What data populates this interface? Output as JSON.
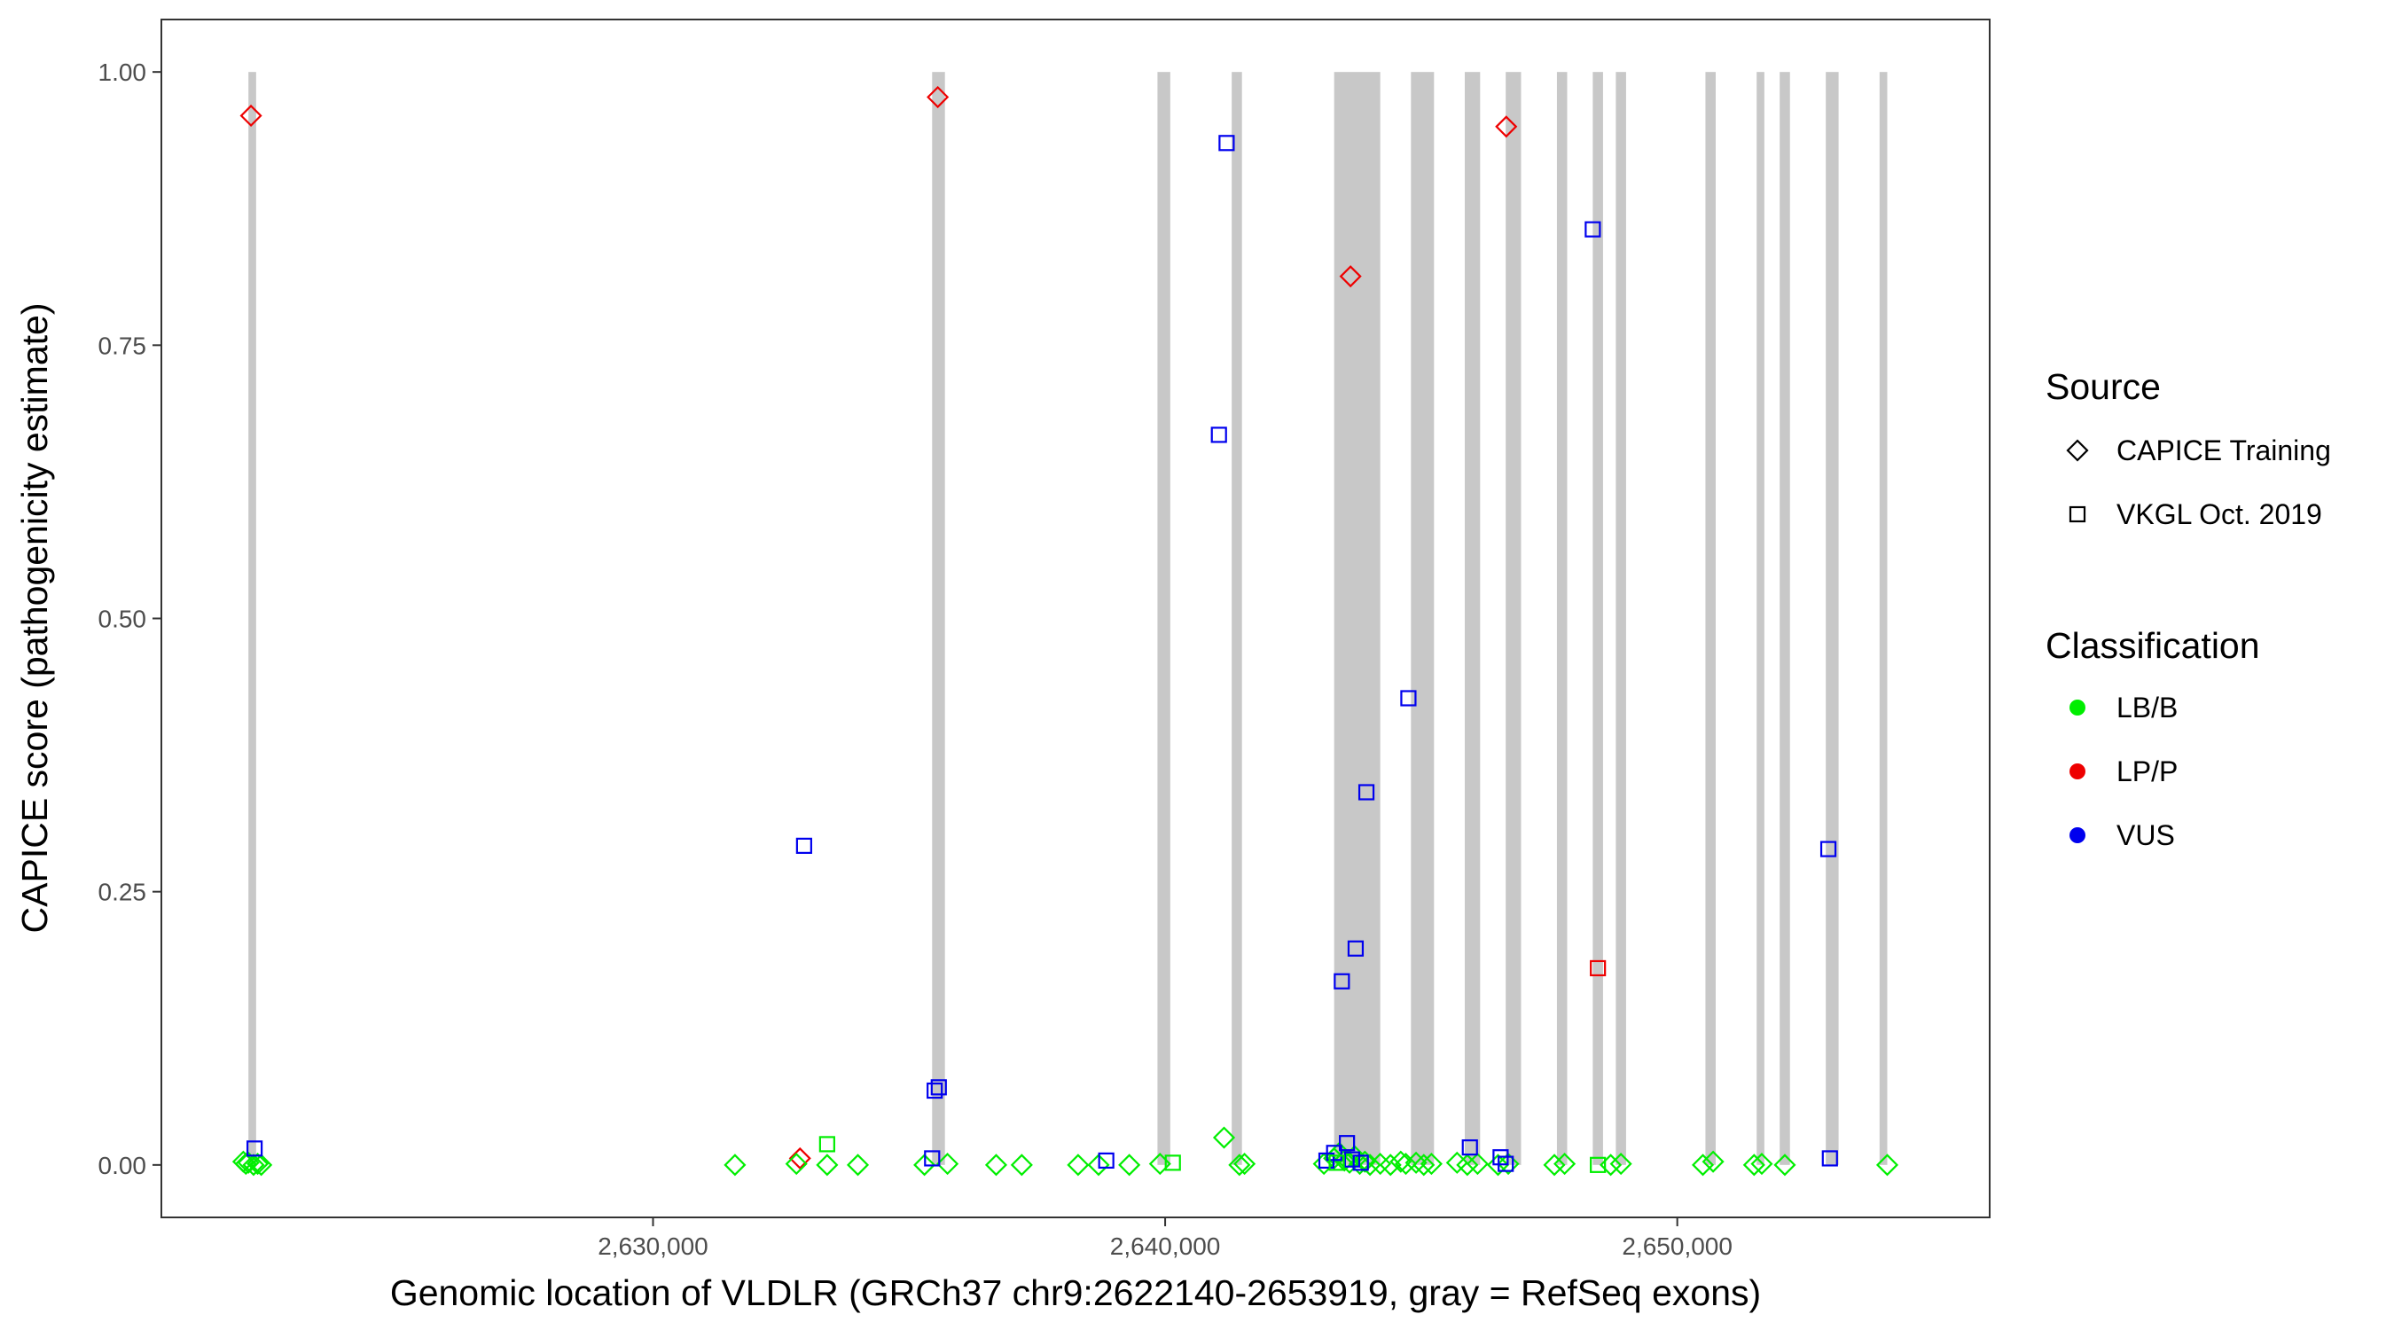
{
  "chart_data": {
    "type": "scatter",
    "title": "",
    "xlabel": "Genomic location of VLDLR (GRCh37 chr9:2622140-2653919, gray = RefSeq exons)",
    "ylabel": "CAPICE score (pathogenicity estimate)",
    "xlim": [
      2620400,
      2656100
    ],
    "ylim": [
      -0.048,
      1.048
    ],
    "x_ticks": [
      2630000,
      2640000,
      2650000
    ],
    "x_tick_labels": [
      "2,630,000",
      "2,640,000",
      "2,650,000"
    ],
    "y_ticks": [
      0,
      0.25,
      0.5,
      0.75,
      1
    ],
    "y_tick_labels": [
      "0.00",
      "0.25",
      "0.50",
      "0.75",
      "1.00"
    ],
    "grid": false,
    "exons": [
      [
        2622100,
        2622250
      ],
      [
        2635450,
        2635700
      ],
      [
        2639850,
        2640100
      ],
      [
        2641300,
        2641500
      ],
      [
        2643300,
        2644200
      ],
      [
        2644800,
        2645250
      ],
      [
        2645850,
        2646150
      ],
      [
        2646650,
        2646950
      ],
      [
        2647650,
        2647850
      ],
      [
        2648350,
        2648550
      ],
      [
        2648800,
        2649000
      ],
      [
        2650550,
        2650750
      ],
      [
        2651550,
        2651700
      ],
      [
        2652000,
        2652200
      ],
      [
        2652900,
        2653150
      ],
      [
        2653950,
        2654100
      ]
    ],
    "colors": {
      "LB/B": "#00ee00",
      "LP/P": "#ee0000",
      "VUS": "#0000ee",
      "exon": "#c8c8c8"
    },
    "legend": {
      "position": "right",
      "source_title": "Source",
      "source_items": [
        {
          "label": "CAPICE Training",
          "shape": "diamond"
        },
        {
          "label": "VKGL Oct. 2019",
          "shape": "square"
        }
      ],
      "class_title": "Classification",
      "class_items": [
        {
          "label": "LB/B",
          "color": "#00ee00"
        },
        {
          "label": "LP/P",
          "color": "#ee0000"
        },
        {
          "label": "VUS",
          "color": "#0000ee"
        }
      ]
    },
    "series": [
      {
        "name": "CAPICE Training / LP/P",
        "shape": "diamond",
        "classification": "LP/P",
        "points": [
          [
            2622150,
            0.96
          ],
          [
            2635560,
            0.977
          ],
          [
            2643620,
            0.813
          ],
          [
            2646660,
            0.95
          ],
          [
            2632870,
            0.006
          ]
        ]
      },
      {
        "name": "CAPICE Training / LB/B",
        "shape": "diamond",
        "classification": "LB/B",
        "points": [
          [
            2622000,
            0.003
          ],
          [
            2622050,
            0.001
          ],
          [
            2622100,
            0.002
          ],
          [
            2622200,
            0.0
          ],
          [
            2622280,
            0.001
          ],
          [
            2622350,
            0.0
          ],
          [
            2631600,
            0.0
          ],
          [
            2632800,
            0.001
          ],
          [
            2633400,
            0.0
          ],
          [
            2634000,
            0.0
          ],
          [
            2635300,
            0.0
          ],
          [
            2635750,
            0.001
          ],
          [
            2636700,
            0.0
          ],
          [
            2637200,
            0.0
          ],
          [
            2638300,
            0.0
          ],
          [
            2638700,
            0.0
          ],
          [
            2639300,
            0.0
          ],
          [
            2639900,
            0.001
          ],
          [
            2641150,
            0.025
          ],
          [
            2641450,
            0.0
          ],
          [
            2641550,
            0.001
          ],
          [
            2643100,
            0.001
          ],
          [
            2643300,
            0.006
          ],
          [
            2643400,
            0.011
          ],
          [
            2643500,
            0.004
          ],
          [
            2643600,
            0.002
          ],
          [
            2643700,
            0.008
          ],
          [
            2643800,
            0.001
          ],
          [
            2643900,
            0.003
          ],
          [
            2644000,
            0.0
          ],
          [
            2644200,
            0.001
          ],
          [
            2644400,
            0.0
          ],
          [
            2644600,
            0.003
          ],
          [
            2644700,
            0.001
          ],
          [
            2644900,
            0.002
          ],
          [
            2645050,
            0.0
          ],
          [
            2645200,
            0.001
          ],
          [
            2645700,
            0.002
          ],
          [
            2645900,
            0.0
          ],
          [
            2646100,
            0.001
          ],
          [
            2646500,
            0.0
          ],
          [
            2646700,
            0.001
          ],
          [
            2647600,
            0.0
          ],
          [
            2647800,
            0.001
          ],
          [
            2648700,
            0.0
          ],
          [
            2648900,
            0.001
          ],
          [
            2650500,
            0.0
          ],
          [
            2650700,
            0.003
          ],
          [
            2651500,
            0.0
          ],
          [
            2651650,
            0.001
          ],
          [
            2652100,
            0.0
          ],
          [
            2654100,
            0.0
          ]
        ]
      },
      {
        "name": "VKGL Oct. 2019 / VUS",
        "shape": "square",
        "classification": "VUS",
        "points": [
          [
            2622220,
            0.015
          ],
          [
            2632950,
            0.292
          ],
          [
            2635500,
            0.068
          ],
          [
            2635580,
            0.071
          ],
          [
            2635450,
            0.006
          ],
          [
            2638850,
            0.004
          ],
          [
            2641050,
            0.668
          ],
          [
            2641200,
            0.935
          ],
          [
            2643150,
            0.004
          ],
          [
            2643300,
            0.011
          ],
          [
            2643450,
            0.168
          ],
          [
            2643550,
            0.02
          ],
          [
            2643650,
            0.005
          ],
          [
            2643720,
            0.198
          ],
          [
            2643820,
            0.002
          ],
          [
            2643930,
            0.341
          ],
          [
            2644750,
            0.427
          ],
          [
            2645950,
            0.016
          ],
          [
            2646550,
            0.007
          ],
          [
            2646650,
            0.001
          ],
          [
            2648350,
            0.856
          ],
          [
            2652950,
            0.289
          ],
          [
            2652980,
            0.006
          ]
        ]
      },
      {
        "name": "VKGL Oct. 2019 / LB/B",
        "shape": "square",
        "classification": "LB/B",
        "points": [
          [
            2633400,
            0.019
          ],
          [
            2640150,
            0.002
          ],
          [
            2648450,
            0.0
          ],
          [
            2643350,
            0.002
          ]
        ]
      },
      {
        "name": "VKGL Oct. 2019 / LP/P",
        "shape": "square",
        "classification": "LP/P",
        "points": [
          [
            2648450,
            0.18
          ]
        ]
      }
    ]
  }
}
